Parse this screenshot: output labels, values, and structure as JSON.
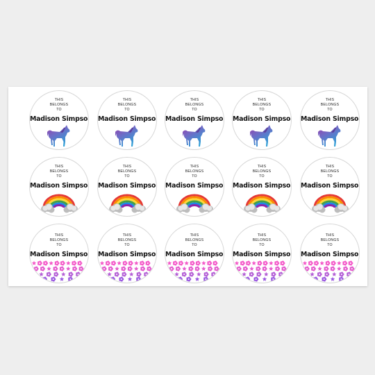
{
  "sheet": {
    "line1": "THIS",
    "line2": "BELONGS",
    "line3": "TO",
    "name": "Madison Simpson"
  },
  "rows": [
    {
      "design": "unicorn-icon",
      "count": 5
    },
    {
      "design": "rainbow-icon",
      "count": 5
    },
    {
      "design": "flower-border-icon",
      "count": 5
    }
  ],
  "colors": {
    "sheet": "#ffffff",
    "background": "#eeeeee",
    "unicorn_top": "#8a3fa0",
    "unicorn_bottom": "#3c8fd0",
    "flowers_pink": "#f055c8",
    "flowers_purple": "#9a58e0"
  }
}
